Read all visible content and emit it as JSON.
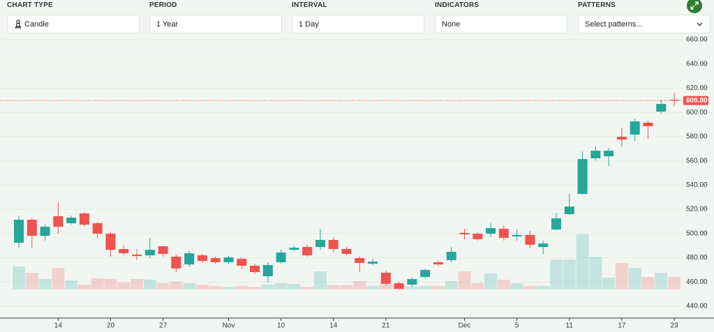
{
  "controls": [
    {
      "label": "CHART TYPE",
      "value": "Candle"
    },
    {
      "label": "PERIOD",
      "value": "1 Year"
    },
    {
      "label": "INTERVAL",
      "value": "1 Day"
    },
    {
      "label": "INDICATORS",
      "value": "None"
    },
    {
      "label": "PATTERNS",
      "value": "Select patterns..."
    }
  ],
  "chart_data": {
    "type": "candlestick",
    "categories": [
      null,
      null,
      null,
      "14",
      null,
      null,
      null,
      "20",
      null,
      null,
      null,
      "27",
      null,
      null,
      null,
      null,
      "Nov",
      null,
      null,
      null,
      "10",
      null,
      null,
      null,
      "14",
      null,
      null,
      null,
      "21",
      null,
      null,
      null,
      null,
      null,
      "Dec",
      null,
      null,
      null,
      "5",
      null,
      null,
      null,
      "11",
      null,
      null,
      null,
      "17",
      null,
      null,
      null,
      "23"
    ],
    "open": [
      492.4,
      511.4,
      498.1,
      514.3,
      508.5,
      516.6,
      508.5,
      499.9,
      487.2,
      482.6,
      482,
      489.5,
      480.9,
      474.5,
      482,
      479.7,
      476.3,
      479.1,
      473.4,
      464.7,
      476.3,
      486.6,
      488.9,
      488.9,
      494.7,
      487.2,
      479.7,
      475.1,
      467.6,
      459,
      457.8,
      464.1,
      476.3,
      478,
      500.5,
      499.9,
      499.9,
      503.9,
      497.6,
      498.8,
      488.9,
      503.3,
      516,
      532.7,
      562.1,
      563.8,
      579.9,
      581.7,
      591.5,
      600.7,
      610.5
    ],
    "high": [
      514.8,
      513.1,
      507.3,
      525.8,
      514.8,
      518,
      509.6,
      501.6,
      490.1,
      487.2,
      496.4,
      489.5,
      482.6,
      486,
      483.2,
      480.9,
      481.4,
      480.3,
      475.1,
      476.3,
      486.6,
      490.1,
      490.7,
      503.9,
      497,
      488.9,
      480.9,
      479.1,
      469.3,
      460.1,
      463.6,
      471.1,
      478,
      488.9,
      503.9,
      501,
      508.5,
      506.8,
      503.3,
      502.2,
      494.1,
      517.2,
      532.7,
      567.8,
      571.9,
      570.7,
      587.4,
      594.9,
      593.2,
      610.5,
      616.2
    ],
    "low": [
      488.3,
      488.3,
      494.1,
      499.9,
      507.3,
      506,
      496,
      480.9,
      482,
      478,
      479.7,
      480.9,
      468.2,
      472.8,
      475.7,
      475.1,
      475.1,
      470.5,
      466.5,
      459.5,
      475.1,
      485.5,
      480.9,
      486.6,
      484.3,
      482,
      468.2,
      473.9,
      456.7,
      453.8,
      456.1,
      463,
      472.8,
      476.3,
      495.3,
      494.1,
      497,
      494.1,
      494.1,
      487.8,
      482.6,
      502.7,
      515.4,
      532.1,
      560.3,
      555.7,
      571.9,
      576.5,
      578.2,
      598.9,
      605.3
    ],
    "close": [
      511.4,
      498.1,
      505.6,
      505.6,
      513.1,
      507.3,
      499.9,
      486.6,
      483.7,
      481.4,
      486.6,
      483.2,
      471.1,
      483.7,
      477.4,
      476.3,
      480.3,
      473.4,
      468.2,
      474,
      484.3,
      488.3,
      482,
      494.7,
      487.2,
      483.2,
      475.7,
      476.8,
      458.4,
      454.4,
      462.4,
      469.9,
      474.5,
      484.9,
      499.3,
      495.3,
      504.5,
      496.4,
      498.8,
      490.7,
      491.8,
      512.5,
      522.3,
      561.5,
      568.4,
      568.4,
      577.6,
      592.6,
      588.6,
      607,
      609.8
    ],
    "volume": [
      33,
      24,
      15,
      31,
      13,
      7,
      16,
      15,
      10,
      15,
      14,
      9,
      11,
      9,
      7,
      5,
      4,
      5,
      4,
      7,
      9,
      8,
      4,
      26,
      6,
      6,
      12,
      5,
      7,
      5,
      4,
      5,
      5,
      12,
      26,
      9,
      23,
      14,
      9,
      5,
      5,
      43,
      43,
      79,
      47,
      17,
      38,
      31,
      18,
      24,
      18
    ],
    "up_color": "#26a69a",
    "down_color": "#ef5350",
    "ylim": [
      440,
      660
    ],
    "yticks": [
      {
        "value": 440,
        "label": "440.00"
      },
      {
        "value": 460,
        "label": "460.00"
      },
      {
        "value": 480,
        "label": "480.00"
      },
      {
        "value": 500,
        "label": "500.00"
      },
      {
        "value": 520,
        "label": "520.00"
      },
      {
        "value": 540,
        "label": "540.00"
      },
      {
        "value": 560,
        "label": "560.00"
      },
      {
        "value": 580,
        "label": "580.00"
      },
      {
        "value": 600,
        "label": "600.00"
      },
      {
        "value": 620,
        "label": "620.00"
      },
      {
        "value": 640,
        "label": "640.00"
      },
      {
        "value": 660,
        "label": "660.00"
      }
    ],
    "last_price": {
      "value": 609.8,
      "label": "609.80"
    },
    "grid": true
  }
}
